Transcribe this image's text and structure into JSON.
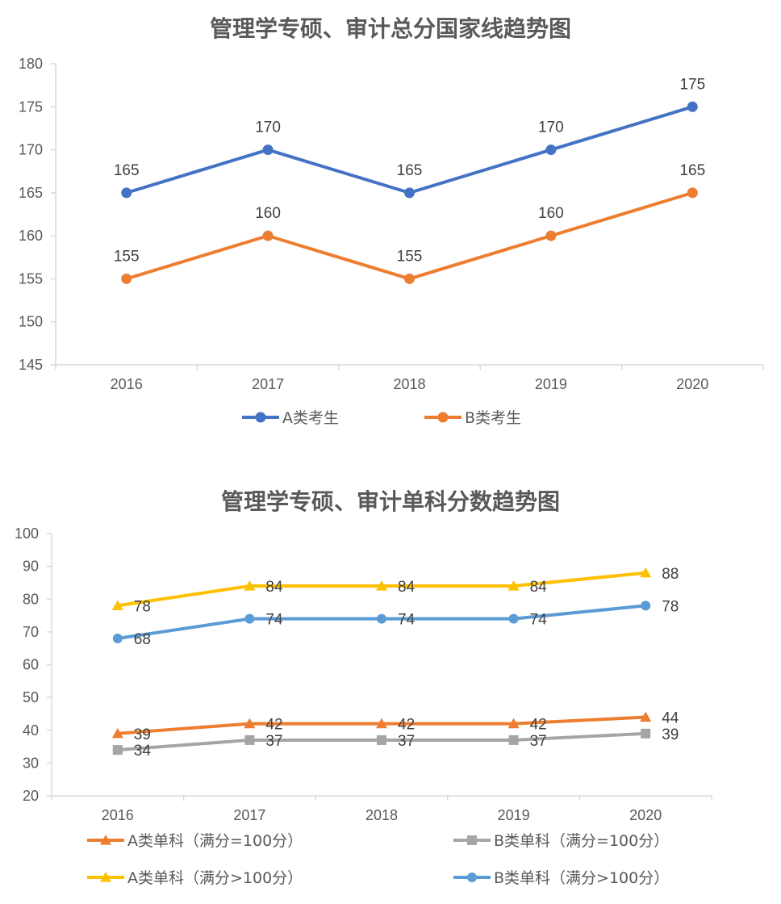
{
  "chart_data": [
    {
      "type": "line",
      "title": "管理学专硕、审计总分国家线趋势图",
      "categories": [
        "2016",
        "2017",
        "2018",
        "2019",
        "2020"
      ],
      "ylim": [
        145,
        180
      ],
      "yticks": [
        145,
        150,
        155,
        160,
        165,
        170,
        175,
        180
      ],
      "grid": false,
      "legend_position": "bottom",
      "series": [
        {
          "name": "A类考生",
          "values": [
            165,
            170,
            165,
            170,
            175
          ],
          "color": "#4472C4",
          "marker": "circle"
        },
        {
          "name": "B类考生",
          "values": [
            155,
            160,
            155,
            160,
            165
          ],
          "color": "#ED7D31",
          "marker": "circle"
        }
      ]
    },
    {
      "type": "line",
      "title": "管理学专硕、审计单科分数趋势图",
      "categories": [
        "2016",
        "2017",
        "2018",
        "2019",
        "2020"
      ],
      "ylim": [
        20,
        100
      ],
      "yticks": [
        20,
        30,
        40,
        50,
        60,
        70,
        80,
        90,
        100
      ],
      "grid": false,
      "legend_position": "bottom",
      "series": [
        {
          "name": "A类单科（满分=100分）",
          "values": [
            39,
            42,
            42,
            42,
            44
          ],
          "color": "#ED7D31",
          "marker": "triangle"
        },
        {
          "name": "B类单科（满分=100分）",
          "values": [
            34,
            37,
            37,
            37,
            39
          ],
          "color": "#A5A5A5",
          "marker": "square"
        },
        {
          "name": "A类单科（满分>100分）",
          "values": [
            78,
            84,
            84,
            84,
            88
          ],
          "color": "#FFC000",
          "marker": "triangle"
        },
        {
          "name": "B类单科（满分>100分）",
          "values": [
            68,
            74,
            74,
            74,
            78
          ],
          "color": "#5B9BD5",
          "marker": "circle"
        }
      ]
    }
  ]
}
